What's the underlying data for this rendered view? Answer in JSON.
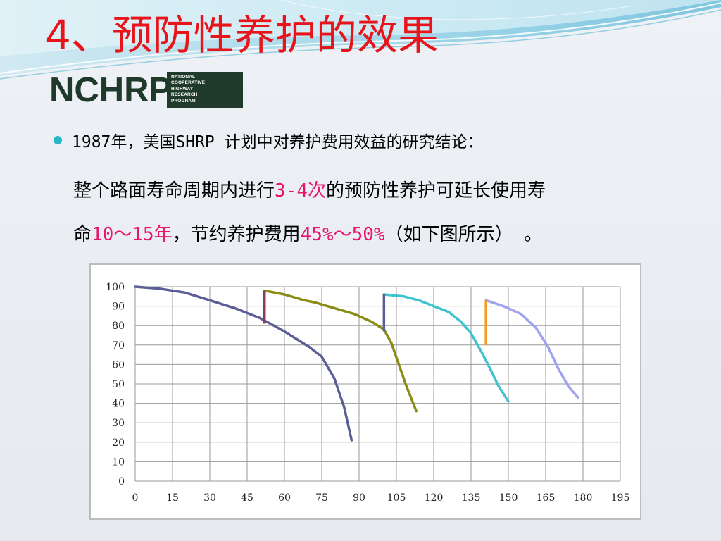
{
  "title": "4、预防性养护的效果",
  "logo": {
    "text": "NCHRP",
    "box_lines": [
      "NATIONAL",
      "COOPERATIVE",
      "HIGHWAY",
      "RESEARCH",
      "PROGRAM"
    ]
  },
  "bullet": {
    "line1": "1987年，美国SHRP 计划中对养护费用效益的研究结论：",
    "line2_a": "整个路面寿命周期内进行",
    "line2_hl": "3-4次",
    "line2_b": "的预防性养护可延长使用寿",
    "line3_a": "命",
    "line3_hl1": "10～15年",
    "line3_b": "，节约养护费用",
    "line3_hl2": "45%～50%",
    "line3_c": "（如下图所示） 。"
  },
  "colors": {
    "title": "#e8141b",
    "highlight": "#e8146e",
    "bullet": "#29b6c8",
    "logo": "#1f3a2a"
  },
  "chart_data": {
    "type": "line",
    "xlim": [
      0,
      195
    ],
    "ylim": [
      0,
      100
    ],
    "x_ticks": [
      "0",
      "15",
      "30",
      "45",
      "60",
      "75",
      "90",
      "105",
      "120",
      "135",
      "150",
      "165",
      "180",
      "195"
    ],
    "y_ticks": [
      "0",
      "10",
      "20",
      "30",
      "40",
      "50",
      "60",
      "70",
      "80",
      "90",
      "100"
    ],
    "grid": true,
    "series": [
      {
        "color": "#5b5f96",
        "points": [
          [
            0,
            100
          ],
          [
            10,
            99
          ],
          [
            20,
            97
          ],
          [
            30,
            93
          ],
          [
            40,
            89
          ],
          [
            50,
            84
          ],
          [
            60,
            77
          ],
          [
            70,
            69
          ],
          [
            75,
            64
          ],
          [
            80,
            53
          ],
          [
            84,
            38
          ],
          [
            87,
            21
          ]
        ]
      },
      {
        "color": "#8b8c16",
        "points": [
          [
            52,
            98
          ],
          [
            60,
            96
          ],
          [
            68,
            93
          ],
          [
            72,
            92
          ],
          [
            80,
            89
          ],
          [
            88,
            86
          ],
          [
            95,
            82
          ],
          [
            100,
            78
          ],
          [
            103,
            71
          ],
          [
            106,
            60
          ],
          [
            109,
            49
          ],
          [
            113,
            36
          ]
        ]
      },
      {
        "color": "#3ec3cf",
        "points": [
          [
            100,
            96
          ],
          [
            108,
            95
          ],
          [
            114,
            93
          ],
          [
            120,
            90
          ],
          [
            126,
            87
          ],
          [
            131,
            82
          ],
          [
            135,
            76
          ],
          [
            139,
            67
          ],
          [
            143,
            57
          ],
          [
            146,
            49
          ],
          [
            150,
            41
          ]
        ]
      },
      {
        "color": "#a0a3ee",
        "points": [
          [
            141,
            93
          ],
          [
            148,
            90
          ],
          [
            155,
            86
          ],
          [
            161,
            79
          ],
          [
            166,
            69
          ],
          [
            170,
            58
          ],
          [
            174,
            49
          ],
          [
            178,
            43
          ]
        ]
      }
    ],
    "jumps": [
      {
        "color": "#883c62",
        "x": 52,
        "from": 81,
        "to": 98
      },
      {
        "color": "#5b5f96",
        "x": 100,
        "from": 77,
        "to": 96
      },
      {
        "color": "#f59a1a",
        "x": 141,
        "from": 70,
        "to": 93
      }
    ]
  }
}
